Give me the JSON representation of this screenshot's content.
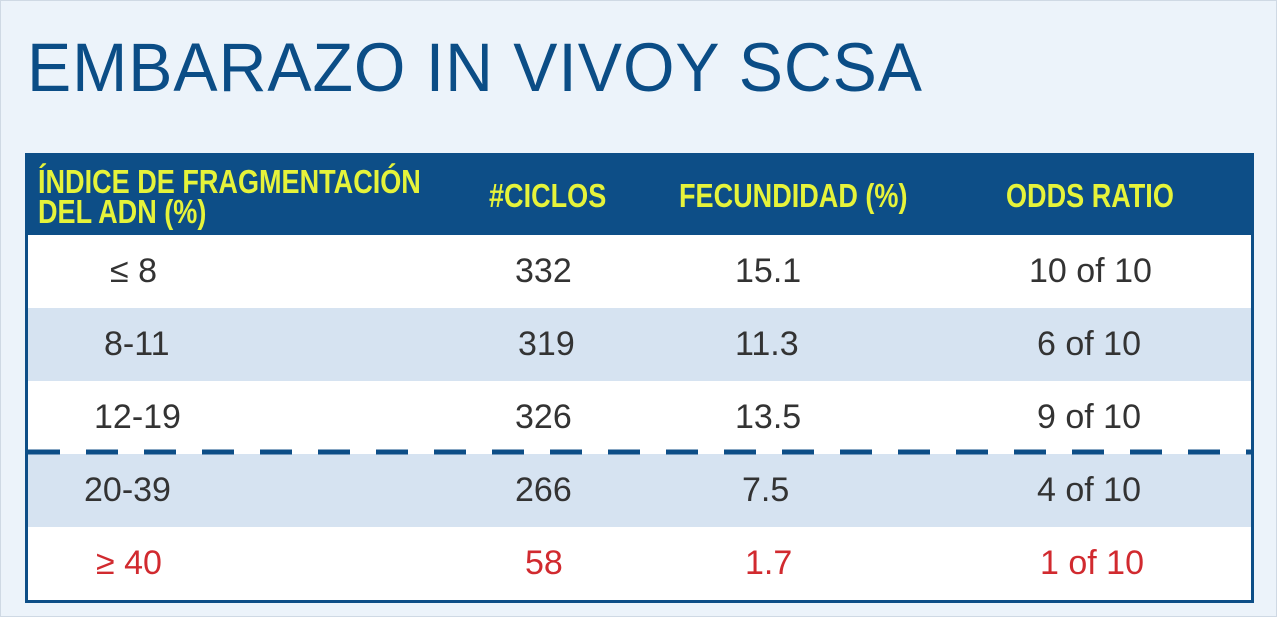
{
  "title": "EMBARAZO IN VIVOY SCSA",
  "table": {
    "headers": {
      "index_line1": "ÍNDICE DE FRAGMENTACIÓN",
      "index_line2": "DEL ADN (%)",
      "cycles": "#CICLOS",
      "fecundity": "FECUNDIDAD (%)",
      "odds": "ODDS RATIO"
    },
    "rows": [
      {
        "range": "≤ 8",
        "cycles": "332",
        "fecundity": "15.1",
        "odds": "10 of 10"
      },
      {
        "range": "8-11",
        "cycles": "319",
        "fecundity": "11.3",
        "odds": "6 of 10"
      },
      {
        "range": "12-19",
        "cycles": "326",
        "fecundity": "13.5",
        "odds": "9 of 10"
      },
      {
        "range": "20-39",
        "cycles": "266",
        "fecundity": "7.5",
        "odds": "4 of 10"
      },
      {
        "range": "≥ 40",
        "cycles": "58",
        "fecundity": "1.7",
        "odds": "1 of 10"
      }
    ]
  },
  "colors": {
    "title": "#0b4d86",
    "header_bg": "#0d4e87",
    "header_text": "#e6f33a",
    "alt_row": "#d6e3f1",
    "highlight_text": "#d12a2f"
  }
}
